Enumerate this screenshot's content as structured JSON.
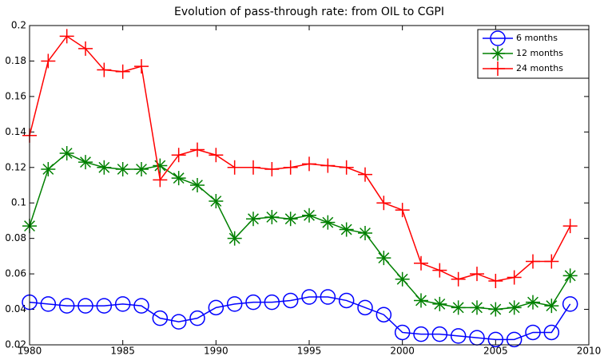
{
  "chart_data": {
    "type": "line",
    "title": "Evolution of pass-through rate: from OIL to CGPI",
    "x": [
      1980,
      1981,
      1982,
      1983,
      1984,
      1985,
      1986,
      1987,
      1988,
      1989,
      1990,
      1991,
      1992,
      1993,
      1994,
      1995,
      1996,
      1997,
      1998,
      1999,
      2000,
      2001,
      2002,
      2003,
      2004,
      2005,
      2006,
      2007,
      2008,
      2009
    ],
    "series": [
      {
        "name": "6 months",
        "color": "#0000ff",
        "marker": "o",
        "values": [
          0.044,
          0.043,
          0.042,
          0.042,
          0.042,
          0.043,
          0.042,
          0.035,
          0.033,
          0.035,
          0.041,
          0.043,
          0.044,
          0.044,
          0.045,
          0.047,
          0.047,
          0.045,
          0.041,
          0.037,
          0.027,
          0.026,
          0.026,
          0.025,
          0.024,
          0.023,
          0.023,
          0.027,
          0.027,
          0.043
        ]
      },
      {
        "name": "12 months",
        "color": "#008000",
        "marker": "*",
        "values": [
          0.087,
          0.119,
          0.128,
          0.123,
          0.12,
          0.119,
          0.119,
          0.121,
          0.114,
          0.11,
          0.101,
          0.08,
          0.091,
          0.092,
          0.091,
          0.093,
          0.089,
          0.085,
          0.083,
          0.069,
          0.057,
          0.045,
          0.043,
          0.041,
          0.041,
          0.04,
          0.041,
          0.044,
          0.042,
          0.059
        ]
      },
      {
        "name": "24 months",
        "color": "#ff0000",
        "marker": "+",
        "values": [
          0.138,
          0.18,
          0.194,
          0.187,
          0.175,
          0.174,
          0.177,
          0.113,
          0.127,
          0.13,
          0.127,
          0.12,
          0.12,
          0.119,
          0.12,
          0.122,
          0.121,
          0.12,
          0.116,
          0.1,
          0.096,
          0.066,
          0.062,
          0.057,
          0.06,
          0.056,
          0.058,
          0.067,
          0.067,
          0.087
        ]
      }
    ],
    "xlim": [
      1980,
      2010
    ],
    "xticks": [
      1980,
      1985,
      1990,
      1995,
      2000,
      2005,
      2010
    ],
    "ylim": [
      0.02,
      0.2
    ],
    "yticks": [
      0.02,
      0.04,
      0.06,
      0.08,
      0.1,
      0.12,
      0.14,
      0.16,
      0.18,
      0.2
    ],
    "legend": "northeast"
  }
}
